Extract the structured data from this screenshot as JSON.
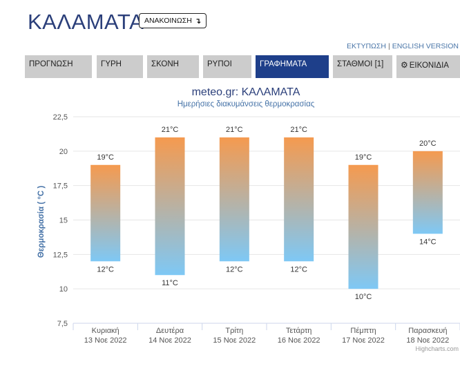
{
  "header": {
    "city": "ΚΑΛΑΜΑΤΑ",
    "announce_label": "ΑΝΑΚΟΙΝΩΣΗ",
    "announce_arrow": "↴",
    "print_link": "ΕΚΤΥΠΩΣΗ",
    "link_separator": "|",
    "english_link": "ENGLISH VERSION"
  },
  "tabs": [
    {
      "label": "ΠΡΟΓΝΩΣΗ",
      "active": false,
      "icon": ""
    },
    {
      "label": "ΓΥΡΗ",
      "active": false,
      "icon": ""
    },
    {
      "label": "ΣΚΟΝΗ",
      "active": false,
      "icon": ""
    },
    {
      "label": "ΡΥΠΟΙ",
      "active": false,
      "icon": ""
    },
    {
      "label": "ΓΡΑΦΗΜΑΤΑ",
      "active": true,
      "icon": ""
    },
    {
      "label": "ΣΤΑΘΜΟΙ [1]",
      "active": false,
      "icon": ""
    },
    {
      "label": "ΕΙΚΟΝΙΔΙΑ",
      "active": false,
      "icon": "gear-icon"
    }
  ],
  "chart_data": {
    "type": "bar",
    "subtype": "columnrange",
    "title": "meteo.gr: ΚΑΛΑΜΑΤΑ",
    "subtitle": "Ημερήσιες διακυμάνσεις θερμοκρασίας",
    "xlabel": "",
    "ylabel": "Θερμοκρασία ( °C )",
    "ylim": [
      7.5,
      22.5
    ],
    "yticks": [
      "7,5",
      "10",
      "12,5",
      "15",
      "17,5",
      "20",
      "22,5"
    ],
    "ytick_values": [
      7.5,
      10,
      12.5,
      15,
      17.5,
      20,
      22.5
    ],
    "categories": [
      {
        "day": "Κυριακή",
        "date": "13 Νοε 2022"
      },
      {
        "day": "Δευτέρα",
        "date": "14 Νοε 2022"
      },
      {
        "day": "Τρίτη",
        "date": "15 Νοε 2022"
      },
      {
        "day": "Τετάρτη",
        "date": "16 Νοε 2022"
      },
      {
        "day": "Πέμπτη",
        "date": "17 Νοε 2022"
      },
      {
        "day": "Παρασκευή",
        "date": "18 Νοε 2022"
      }
    ],
    "low": [
      12,
      11,
      12,
      12,
      10,
      14
    ],
    "high": [
      19,
      21,
      21,
      21,
      19,
      20
    ],
    "low_labels": [
      "12°C",
      "11°C",
      "12°C",
      "12°C",
      "10°C",
      "14°C"
    ],
    "high_labels": [
      "19°C",
      "21°C",
      "21°C",
      "21°C",
      "19°C",
      "20°C"
    ],
    "grid": true,
    "colors": {
      "bar_top": "#f59a4f",
      "bar_bottom": "#7ec8f5",
      "title": "#2b3f7a",
      "ylabel": "#4572a7"
    }
  },
  "credits": "Highcharts.com"
}
